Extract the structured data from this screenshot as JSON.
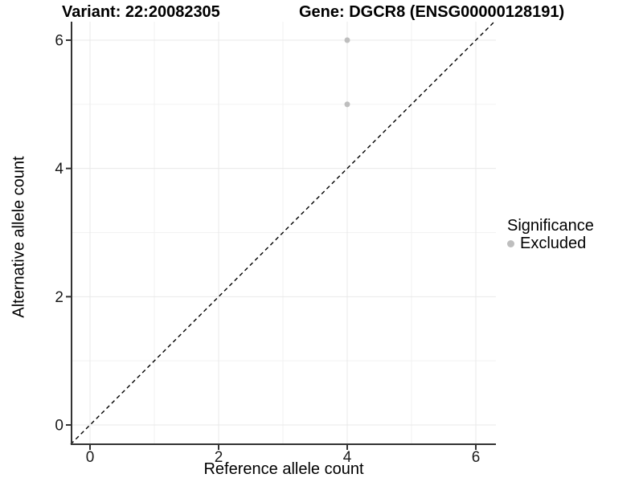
{
  "header": {
    "variant_title": "Variant: 22:20082305",
    "gene_title": "Gene: DGCR8 (ENSG00000128191)"
  },
  "axes": {
    "x": {
      "label": "Reference allele count",
      "tick_labels": [
        "0",
        "2",
        "4",
        "6"
      ]
    },
    "y": {
      "label": "Alternative allele count",
      "tick_labels": [
        "0",
        "2",
        "4",
        "6"
      ]
    }
  },
  "legend": {
    "title": "Significance",
    "items": [
      {
        "label": "Excluded",
        "color": "#bebebe"
      }
    ]
  },
  "chart_data": {
    "type": "scatter",
    "title": "Variant: 22:20082305 — Gene: DGCR8 (ENSG00000128191)",
    "xlabel": "Reference allele count",
    "ylabel": "Alternative allele count",
    "xlim": [
      -0.29,
      6.31
    ],
    "ylim": [
      -0.29,
      6.28
    ],
    "x_major_ticks": [
      0,
      2,
      4,
      6
    ],
    "x_minor_ticks": [
      1,
      3,
      5
    ],
    "y_major_ticks": [
      0,
      2,
      4,
      6
    ],
    "y_minor_ticks": [
      1,
      3,
      5
    ],
    "grid": "on",
    "legend_position": "right",
    "series": [
      {
        "name": "Excluded",
        "color": "#bebebe",
        "points": [
          {
            "x": 4,
            "y": 6
          },
          {
            "x": 4,
            "y": 5
          }
        ]
      }
    ],
    "reference_line": {
      "type": "identity",
      "style": "dashed",
      "color": "#000000"
    }
  },
  "colors": {
    "background": "#ffffff",
    "grid_major": "#e8e8e8",
    "grid_minor": "#f2f2f2",
    "axis_line": "#333333",
    "tick_text": "#1a1a1a",
    "title_text": "#000000",
    "point": "#bebebe"
  }
}
